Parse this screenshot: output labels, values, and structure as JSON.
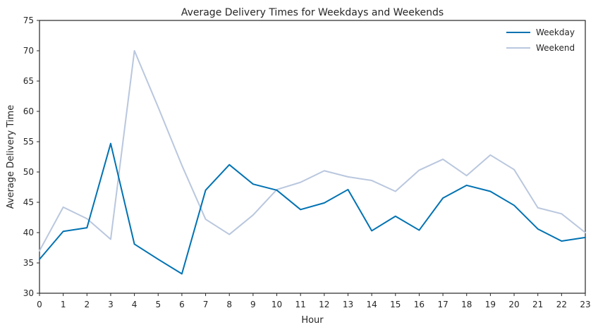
{
  "chart_data": {
    "type": "line",
    "title": "Average Delivery Times for Weekdays and Weekends",
    "xlabel": "Hour",
    "ylabel": "Average Delivery Time",
    "xlim": [
      0,
      23
    ],
    "ylim": [
      30,
      75
    ],
    "x_ticks": [
      "0",
      "1",
      "2",
      "3",
      "4",
      "5",
      "6",
      "7",
      "8",
      "9",
      "10",
      "11",
      "12",
      "13",
      "14",
      "15",
      "16",
      "17",
      "18",
      "19",
      "20",
      "21",
      "22",
      "23"
    ],
    "y_ticks": [
      "30",
      "35",
      "40",
      "45",
      "50",
      "55",
      "60",
      "65",
      "70",
      "75"
    ],
    "grid": false,
    "legend_position": "top-right",
    "x": [
      0,
      1,
      2,
      3,
      4,
      5,
      6,
      7,
      8,
      9,
      10,
      11,
      12,
      13,
      14,
      15,
      16,
      17,
      18,
      19,
      20,
      21,
      22,
      23
    ],
    "series": [
      {
        "name": "Weekday",
        "color": "#0072b2",
        "values": [
          35.6,
          40.2,
          40.8,
          54.7,
          38.1,
          35.6,
          33.2,
          47.0,
          51.2,
          48.0,
          47.0,
          43.8,
          44.9,
          47.1,
          40.3,
          42.7,
          40.4,
          45.7,
          47.8,
          46.8,
          44.5,
          40.6,
          38.6,
          39.2
        ]
      },
      {
        "name": "Weekend",
        "color": "#b9c7de",
        "values": [
          37.0,
          44.2,
          42.3,
          38.9,
          70.0,
          60.7,
          51.1,
          42.2,
          39.7,
          42.9,
          47.1,
          48.3,
          50.2,
          49.2,
          48.6,
          46.8,
          50.3,
          52.1,
          49.4,
          52.8,
          50.4,
          44.1,
          43.1,
          40.0
        ]
      }
    ]
  }
}
